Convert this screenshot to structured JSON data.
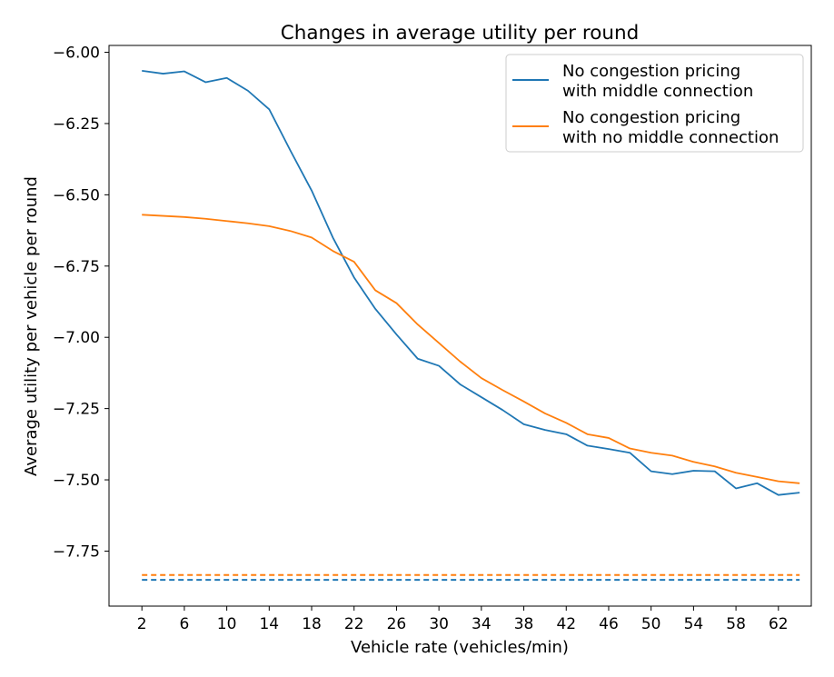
{
  "chart_data": {
    "type": "line",
    "title": "Changes in average utility per round",
    "xlabel": "Vehicle rate (vehicles/min)",
    "ylabel": "Average utility per vehicle per round",
    "xlim": [
      -1.1,
      65.1
    ],
    "ylim": [
      -7.943,
      -5.976
    ],
    "x_ticks": [
      2,
      6,
      10,
      14,
      18,
      22,
      26,
      30,
      34,
      38,
      42,
      46,
      50,
      54,
      58,
      62
    ],
    "y_ticks": [
      -6.0,
      -6.25,
      -6.5,
      -6.75,
      -7.0,
      -7.25,
      -7.5,
      -7.75
    ],
    "y_tick_labels": [
      "−6.00",
      "−6.25",
      "−6.50",
      "−6.75",
      "−7.00",
      "−7.25",
      "−7.50",
      "−7.75"
    ],
    "grid": false,
    "legend_position": "top-right",
    "x": [
      2,
      4,
      6,
      8,
      10,
      12,
      14,
      16,
      18,
      20,
      22,
      24,
      26,
      28,
      30,
      32,
      34,
      36,
      38,
      40,
      42,
      44,
      46,
      48,
      50,
      52,
      54,
      56,
      58,
      60,
      62,
      64
    ],
    "series": [
      {
        "name": "No congestion pricing\nwith middle connection",
        "color": "#1f77b4",
        "values": [
          -6.065,
          -6.075,
          -6.067,
          -6.105,
          -6.09,
          -6.135,
          -6.2,
          -6.345,
          -6.485,
          -6.65,
          -6.79,
          -6.9,
          -6.99,
          -7.075,
          -7.1,
          -7.165,
          -7.21,
          -7.255,
          -7.305,
          -7.325,
          -7.34,
          -7.38,
          -7.392,
          -7.405,
          -7.47,
          -7.48,
          -7.468,
          -7.47,
          -7.53,
          -7.512,
          -7.553,
          -7.545
        ]
      },
      {
        "name": "No congestion pricing\nwith no middle connection",
        "color": "#ff7f0e",
        "values": [
          -6.57,
          -6.574,
          -6.578,
          -6.584,
          -6.592,
          -6.6,
          -6.61,
          -6.627,
          -6.65,
          -6.697,
          -6.735,
          -6.835,
          -6.88,
          -6.955,
          -7.02,
          -7.085,
          -7.143,
          -7.185,
          -7.225,
          -7.267,
          -7.3,
          -7.34,
          -7.353,
          -7.39,
          -7.405,
          -7.415,
          -7.437,
          -7.453,
          -7.475,
          -7.49,
          -7.505,
          -7.512
        ]
      }
    ],
    "baselines": [
      {
        "color": "#1f77b4",
        "style": "dashed",
        "value": -7.851
      },
      {
        "color": "#ff7f0e",
        "style": "dashed",
        "value": -7.834
      }
    ],
    "legend": [
      {
        "lines": [
          "No congestion pricing",
          "with middle connection"
        ],
        "color": "#1f77b4"
      },
      {
        "lines": [
          "No congestion pricing",
          "with no middle connection"
        ],
        "color": "#ff7f0e"
      }
    ]
  }
}
